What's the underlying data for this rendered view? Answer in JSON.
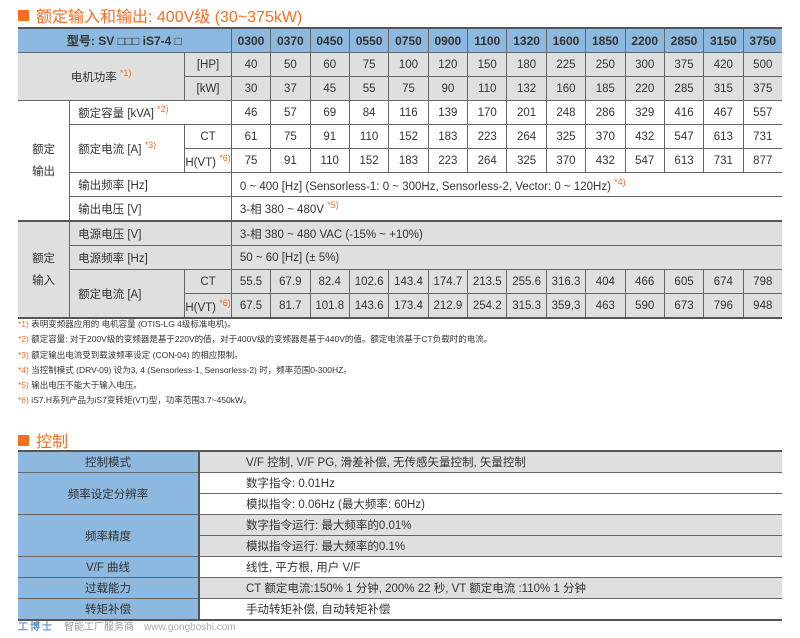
{
  "section1": {
    "title": "额定输入和输出: 400V级 (30~375kW)"
  },
  "table1": {
    "model_label": "型号: SV □□□ iS7-4 □",
    "models": [
      "0300",
      "0370",
      "0450",
      "0550",
      "0750",
      "0900",
      "1100",
      "1320",
      "1600",
      "1850",
      "2200",
      "2850",
      "3150",
      "3750"
    ],
    "motor_power": {
      "label": "电机功率",
      "note": "*1)",
      "hp_unit": "[HP]",
      "kw_unit": "[kW]",
      "hp": [
        "40",
        "50",
        "60",
        "75",
        "100",
        "120",
        "150",
        "180",
        "225",
        "250",
        "300",
        "375",
        "420",
        "500"
      ],
      "kw": [
        "30",
        "37",
        "45",
        "55",
        "75",
        "90",
        "110",
        "132",
        "160",
        "185",
        "220",
        "285",
        "315",
        "375"
      ]
    },
    "output": {
      "group": "额定输出",
      "group_l1": "额定",
      "group_l2": "输出",
      "capacity": {
        "label": "额定容量 [kVA]",
        "note": "*2)",
        "values": [
          "46",
          "57",
          "69",
          "84",
          "116",
          "139",
          "170",
          "201",
          "248",
          "286",
          "329",
          "416",
          "467",
          "557"
        ]
      },
      "current": {
        "label": "额定电流 [A]",
        "note": "*3)",
        "ct_label": "CT",
        "vt_label": "H(VT)",
        "vt_note": "*6)",
        "ct": [
          "61",
          "75",
          "91",
          "110",
          "152",
          "183",
          "223",
          "264",
          "325",
          "370",
          "432",
          "547",
          "613",
          "731"
        ],
        "vt": [
          "75",
          "91",
          "110",
          "152",
          "183",
          "223",
          "264",
          "325",
          "370",
          "432",
          "547",
          "613",
          "731",
          "877"
        ]
      },
      "frequency": {
        "label": "输出频率 [Hz]",
        "value": "0 ~ 400 [Hz] (Sensorless-1: 0 ~ 300Hz, Sensorless-2, Vector: 0 ~ 120Hz)",
        "note": "*4)"
      },
      "voltage": {
        "label": "输出电压 [V]",
        "value": "3-相 380 ~ 480V",
        "note": "*5)"
      }
    },
    "input": {
      "group_l1": "额定",
      "group_l2": "输入",
      "voltage": {
        "label": "电源电压 [V]",
        "value": "3-相 380 ~ 480 VAC (-15% ~ +10%)"
      },
      "frequency": {
        "label": "电源频率 [Hz]",
        "value": "50 ~ 60 [Hz] (± 5%)"
      },
      "current": {
        "label": "额定电流 [A]",
        "ct_label": "CT",
        "vt_label": "H(VT)",
        "vt_note": "*6)",
        "ct": [
          "55.5",
          "67.9",
          "82.4",
          "102.6",
          "143.4",
          "174.7",
          "213.5",
          "255.6",
          "316.3",
          "404",
          "466",
          "605",
          "674",
          "798"
        ],
        "vt": [
          "67.5",
          "81.7",
          "101.8",
          "143.6",
          "173.4",
          "212.9",
          "254.2",
          "315.3",
          "359,3",
          "463",
          "590",
          "673",
          "796",
          "948"
        ]
      }
    }
  },
  "notes": [
    {
      "mark": "*1)",
      "text": "表明变频器应用的 电机容量 (OTIS-LG 4级标准电机)。"
    },
    {
      "mark": "*2)",
      "text": "额定容量: 对于200V级的变频器是基于220V的值，对于400V级的变频器是基于440V的值。额定电流基于CT负载时的电流。"
    },
    {
      "mark": "*3)",
      "text": "额定输出电流受到载波频率设定 (CON-04) 的相应限制。"
    },
    {
      "mark": "*4)",
      "text": "当控制模式 (DRV-09) 设为3, 4 (Sensorless-1, Sensorless-2) 时，频率范围0-300HZ。"
    },
    {
      "mark": "*5)",
      "text": "输出电压不能大于输入电压。"
    },
    {
      "mark": "*6)",
      "text": "iS7.H系列产品为iS7变转矩(VT)型，功率范围3.7~450kW。"
    }
  ],
  "section2": {
    "title": "控制"
  },
  "table2": [
    {
      "key": "控制模式",
      "values": [
        "V/F 控制, V/F PG, 滑差补偿, 无传感矢量控制, 矢量控制"
      ],
      "shade": "gray"
    },
    {
      "key": "频率设定分辨率",
      "values": [
        "数字指令: 0.01Hz",
        "模拟指令: 0.06Hz (最大频率: 60Hz)"
      ],
      "shade": "white"
    },
    {
      "key": "频率精度",
      "values": [
        "数字指令运行: 最大频率的0.01%",
        "模拟指令运行: 最大频率的0.1%"
      ],
      "shade": "gray"
    },
    {
      "key": "V/F 曲线",
      "values": [
        "线性, 平方根, 用户 V/F"
      ],
      "shade": "white"
    },
    {
      "key": "过载能力",
      "values": [
        "CT 额定电流:150% 1 分钟, 200%  22 秒, VT 额定电流 :110% 1 分钟"
      ],
      "shade": "gray"
    },
    {
      "key": "转矩补偿",
      "values": [
        "手动转矩补偿, 自动转矩补偿"
      ],
      "shade": "white"
    }
  ],
  "watermark": {
    "brand": "工博士",
    "slogan": "智能工厂服务商",
    "url": "www.gongboshi.com"
  },
  "colors": {
    "accent": "#f26f21",
    "header_blue": "#8db8e0",
    "gray_row": "#dde0df"
  }
}
